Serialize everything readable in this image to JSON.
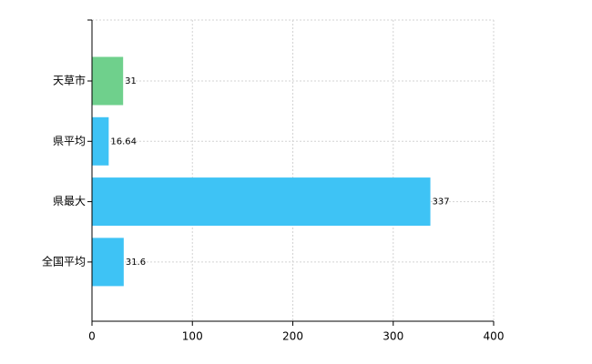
{
  "chart_data": {
    "type": "barh",
    "categories": [
      "天草市",
      "県平均",
      "県最大",
      "全国平均"
    ],
    "values": [
      31,
      16.64,
      337,
      31.6
    ],
    "colors": [
      "#6fd08c",
      "#3ec3f5",
      "#3ec3f5",
      "#3ec3f5"
    ],
    "xlim": [
      0,
      400
    ],
    "xticks": [
      0,
      100,
      200,
      300,
      400
    ],
    "grid": true
  }
}
